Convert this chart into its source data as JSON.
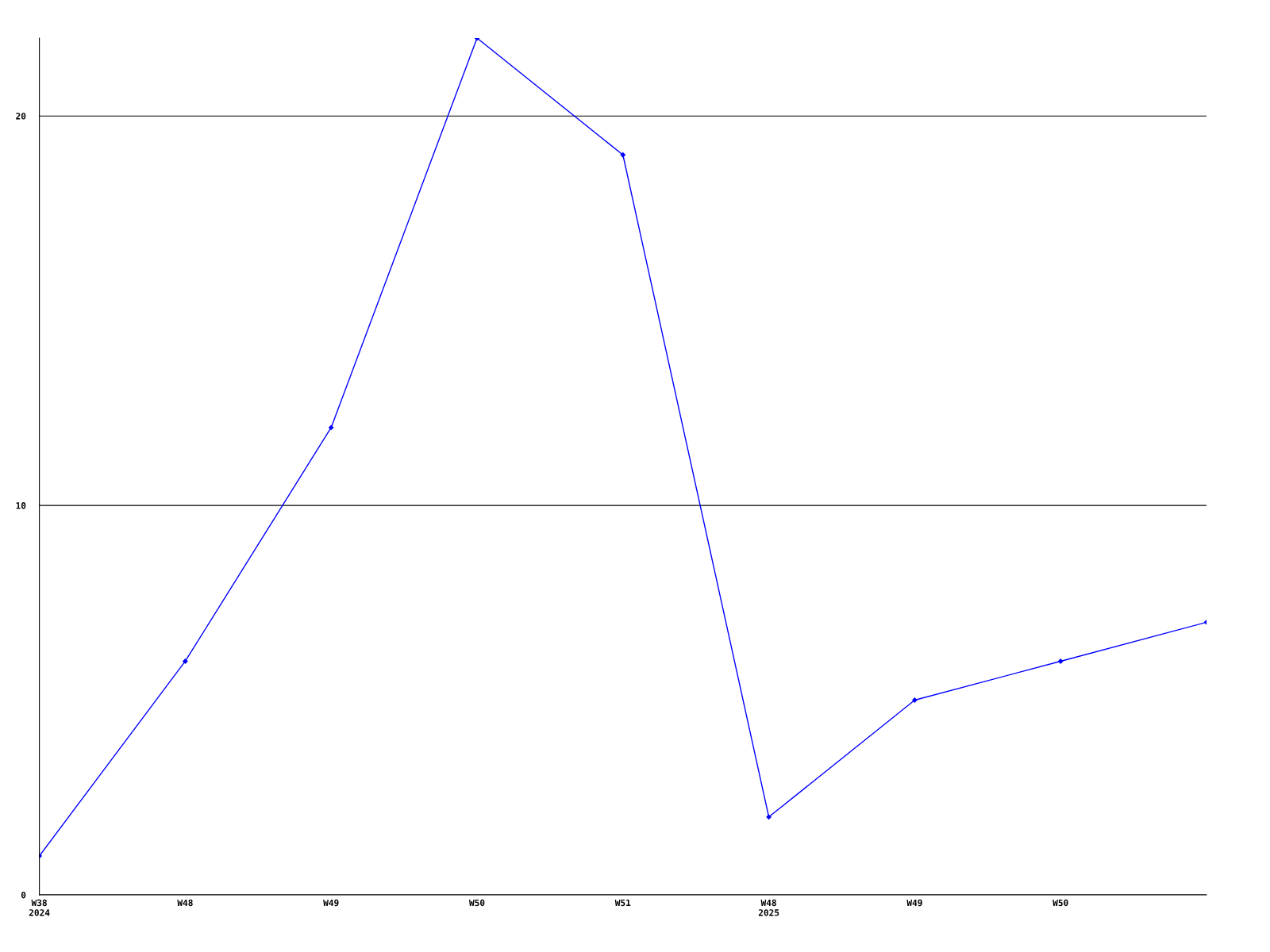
{
  "chart_data": {
    "type": "line",
    "categories": [
      "W38\n2024",
      "W48",
      "W49",
      "W50",
      "W51",
      "W48\n2025",
      "W49",
      "W50",
      null
    ],
    "series": [
      {
        "color": "#0000ff",
        "values": [
          1,
          6,
          12,
          22,
          19,
          2,
          5,
          6,
          7
        ]
      }
    ],
    "ylim": [
      0,
      22
    ],
    "yticks": [
      0,
      10,
      20
    ],
    "grid": "y",
    "marker": "diamond",
    "line_style": "solid"
  }
}
